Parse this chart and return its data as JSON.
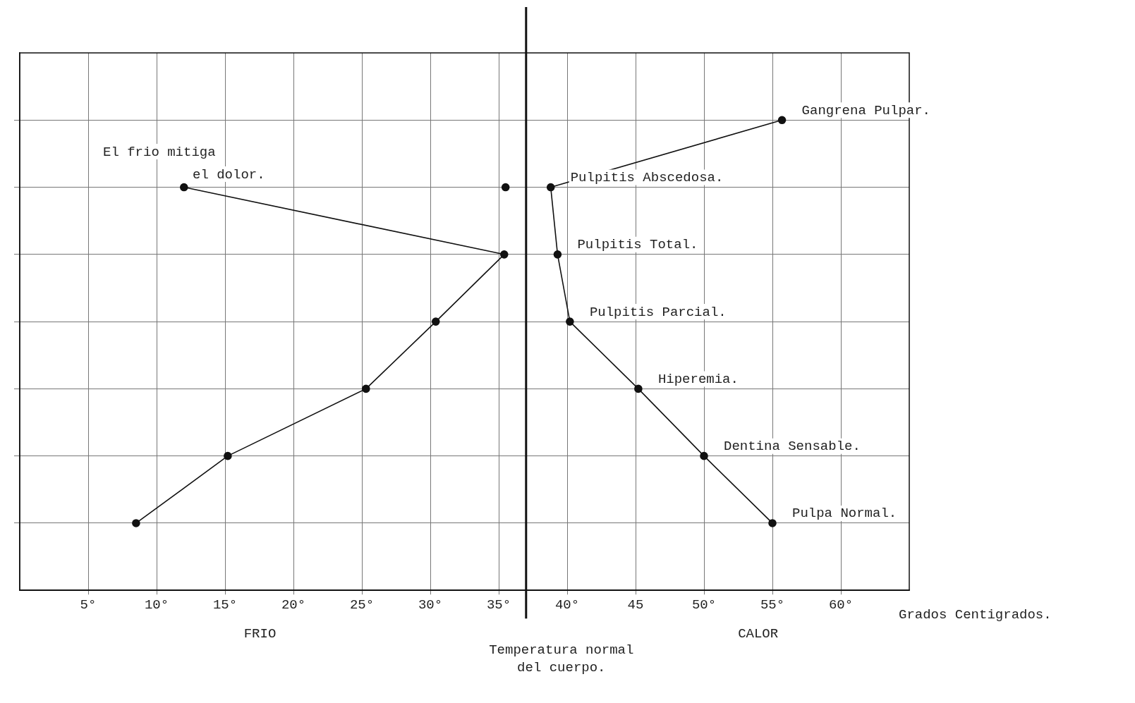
{
  "chart_data": {
    "type": "line",
    "orientation": "horizontal",
    "xlabel": "Grados Centigrados.",
    "categories": [
      "Gangrena Pulpar.",
      "Pulpitis Abscedosa.",
      "Pulpitis Total.",
      "Pulpitis Parcial.",
      "Hiperemia.",
      "Dentina Sensable.",
      "Pulpa Normal."
    ],
    "series": [
      {
        "color": "#111111",
        "values": [
          null,
          12,
          35.4,
          30.4,
          25.3,
          15.2,
          8.5
        ]
      },
      {
        "color": "#111111",
        "values": [
          55.7,
          38.8,
          39.3,
          40.2,
          45.2,
          50,
          55
        ]
      },
      {
        "type": "scatter",
        "color": "#111111",
        "values": [
          null,
          35.5,
          null,
          null,
          null,
          null,
          null
        ]
      }
    ],
    "xlim": [
      0,
      65
    ],
    "xticks": [
      {
        "value": 5,
        "label": "5°"
      },
      {
        "value": 10,
        "label": "10°"
      },
      {
        "value": 15,
        "label": "15°"
      },
      {
        "value": 20,
        "label": "20°"
      },
      {
        "value": 25,
        "label": "25°"
      },
      {
        "value": 30,
        "label": "30°"
      },
      {
        "value": 35,
        "label": "35°"
      },
      {
        "value": 40,
        "label": "40°"
      },
      {
        "value": 45,
        "label": "45"
      },
      {
        "value": 50,
        "label": "50°"
      },
      {
        "value": 55,
        "label": "55°"
      },
      {
        "value": 60,
        "label": "60°"
      }
    ],
    "ref_lines": [
      {
        "axis": "x",
        "value": 37,
        "label": "Temperatura normal del cuerpo.",
        "color": "#111111"
      }
    ],
    "annotations": [
      "El frio mitiga el dolor.",
      "FRIO",
      "CALOR"
    ],
    "grid": true,
    "tick_labels": "x",
    "marker": "circle",
    "line_style": "solid",
    "legend": false
  }
}
